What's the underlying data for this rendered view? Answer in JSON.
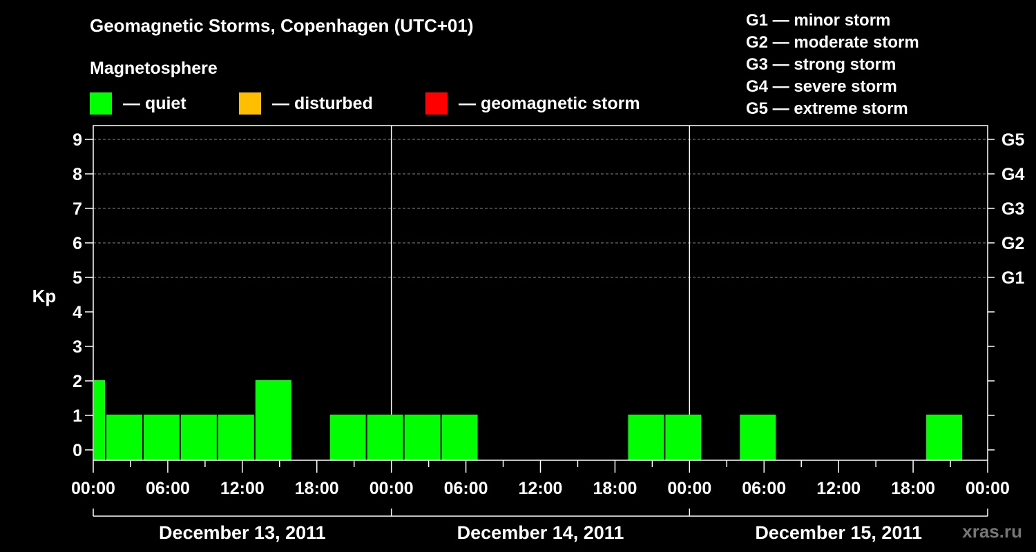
{
  "chart_data": {
    "type": "bar",
    "title": "Geomagnetic Storms, Copenhagen (UTC+01)",
    "ylabel": "Kp",
    "ylim": [
      0,
      9
    ],
    "x_start": "2011-12-13 00:00",
    "x_end": "2011-12-16 00:00",
    "x_tick_labels": [
      "00:00",
      "06:00",
      "12:00",
      "18:00",
      "00:00",
      "06:00",
      "12:00",
      "18:00",
      "00:00",
      "06:00",
      "12:00",
      "18:00",
      "00:00"
    ],
    "y_tick_labels": [
      "0",
      "1",
      "2",
      "3",
      "4",
      "5",
      "6",
      "7",
      "8",
      "9"
    ],
    "right_axis_labels": [
      {
        "kp": 5,
        "label": "G1"
      },
      {
        "kp": 6,
        "label": "G2"
      },
      {
        "kp": 7,
        "label": "G3"
      },
      {
        "kp": 8,
        "label": "G4"
      },
      {
        "kp": 9,
        "label": "G5"
      }
    ],
    "days": [
      "December 13, 2011",
      "December 14, 2011",
      "December 15, 2011"
    ],
    "bars": [
      {
        "start": "2011-12-13 00:00",
        "end": "2011-12-13 01:00",
        "kp": 2
      },
      {
        "start": "2011-12-13 01:00",
        "end": "2011-12-13 04:00",
        "kp": 1
      },
      {
        "start": "2011-12-13 04:00",
        "end": "2011-12-13 07:00",
        "kp": 1
      },
      {
        "start": "2011-12-13 07:00",
        "end": "2011-12-13 10:00",
        "kp": 1
      },
      {
        "start": "2011-12-13 10:00",
        "end": "2011-12-13 13:00",
        "kp": 1
      },
      {
        "start": "2011-12-13 13:00",
        "end": "2011-12-13 16:00",
        "kp": 2
      },
      {
        "start": "2011-12-13 16:00",
        "end": "2011-12-13 19:00",
        "kp": 0
      },
      {
        "start": "2011-12-13 19:00",
        "end": "2011-12-13 22:00",
        "kp": 1
      },
      {
        "start": "2011-12-13 22:00",
        "end": "2011-12-14 01:00",
        "kp": 1
      },
      {
        "start": "2011-12-14 01:00",
        "end": "2011-12-14 04:00",
        "kp": 1
      },
      {
        "start": "2011-12-14 04:00",
        "end": "2011-12-14 07:00",
        "kp": 1
      },
      {
        "start": "2011-12-14 07:00",
        "end": "2011-12-14 10:00",
        "kp": 0
      },
      {
        "start": "2011-12-14 10:00",
        "end": "2011-12-14 13:00",
        "kp": 0
      },
      {
        "start": "2011-12-14 13:00",
        "end": "2011-12-14 16:00",
        "kp": 0
      },
      {
        "start": "2011-12-14 16:00",
        "end": "2011-12-14 19:00",
        "kp": 0
      },
      {
        "start": "2011-12-14 19:00",
        "end": "2011-12-14 22:00",
        "kp": 1
      },
      {
        "start": "2011-12-14 22:00",
        "end": "2011-12-15 01:00",
        "kp": 1
      },
      {
        "start": "2011-12-15 01:00",
        "end": "2011-12-15 04:00",
        "kp": 0
      },
      {
        "start": "2011-12-15 04:00",
        "end": "2011-12-15 07:00",
        "kp": 1
      },
      {
        "start": "2011-12-15 07:00",
        "end": "2011-12-15 10:00",
        "kp": 0
      },
      {
        "start": "2011-12-15 10:00",
        "end": "2011-12-15 13:00",
        "kp": 0
      },
      {
        "start": "2011-12-15 13:00",
        "end": "2011-12-15 16:00",
        "kp": 0
      },
      {
        "start": "2011-12-15 16:00",
        "end": "2011-12-15 19:00",
        "kp": 0
      },
      {
        "start": "2011-12-15 19:00",
        "end": "2011-12-15 22:00",
        "kp": 1
      }
    ],
    "grid": "dashed horizontal lines at Kp 5 to 9; solid vertical lines at day boundaries",
    "bar_color": "#00ff00"
  },
  "legend": {
    "heading": "Magnetosphere",
    "items": [
      {
        "label": "— quiet",
        "color": "#00ff00"
      },
      {
        "label": "— disturbed",
        "color": "#ffbf00"
      },
      {
        "label": "— geomagnetic storm",
        "color": "#ff0000"
      }
    ]
  },
  "storm_levels": [
    "G1 — minor storm",
    "G2 — moderate storm",
    "G3 — strong storm",
    "G4 — severe storm",
    "G5 — extreme storm"
  ],
  "watermark": "xras.ru"
}
